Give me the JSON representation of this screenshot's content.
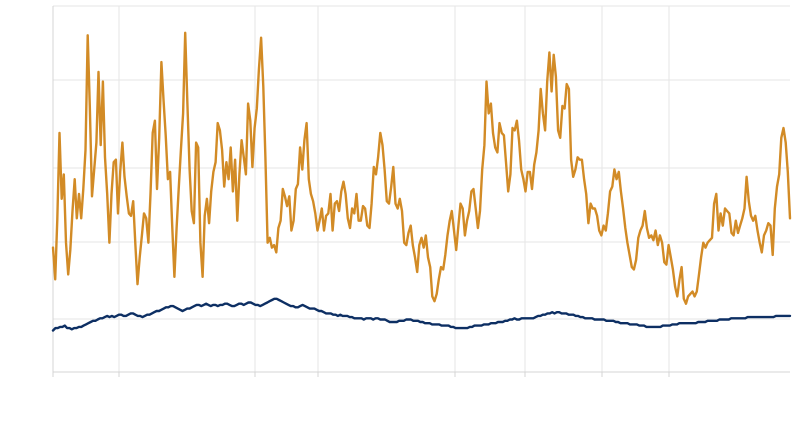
{
  "chart_data": {
    "type": "line",
    "title": "",
    "xlabel": "",
    "ylabel": "",
    "x_range": [
      0,
      313
    ],
    "y_range": [
      -2,
      28
    ],
    "grid": true,
    "legend": "none",
    "series": [
      {
        "color": "#d28b26",
        "values": [
          8.2,
          5.6,
          10.5,
          17.6,
          12.2,
          14.2,
          8.6,
          6.0,
          8.0,
          11.2,
          13.8,
          10.6,
          12.6,
          10.6,
          13.0,
          16.2,
          25.6,
          19.8,
          12.4,
          14.6,
          16.8,
          22.6,
          16.6,
          21.8,
          15.6,
          12.6,
          8.6,
          12.6,
          15.2,
          15.4,
          11.0,
          14.4,
          16.8,
          14.0,
          12.4,
          11.0,
          10.8,
          12.0,
          8.4,
          5.2,
          7.4,
          9.2,
          11.0,
          10.6,
          8.6,
          12.6,
          17.6,
          18.6,
          13.0,
          17.2,
          23.4,
          20.2,
          17.4,
          13.8,
          14.4,
          10.0,
          5.8,
          9.8,
          13.0,
          16.2,
          19.2,
          25.8,
          20.0,
          14.6,
          11.2,
          10.2,
          16.8,
          16.4,
          8.6,
          5.8,
          10.8,
          12.2,
          10.2,
          12.8,
          14.4,
          15.2,
          18.4,
          17.8,
          16.2,
          13.2,
          15.2,
          13.8,
          16.4,
          12.8,
          15.4,
          10.4,
          14.2,
          17.0,
          15.6,
          14.2,
          20.0,
          18.6,
          14.8,
          18.0,
          19.6,
          22.8,
          25.4,
          21.4,
          15.6,
          8.6,
          9.0,
          8.2,
          8.4,
          7.8,
          9.8,
          10.4,
          13.0,
          12.4,
          11.6,
          12.4,
          9.6,
          10.4,
          13.0,
          13.4,
          16.4,
          14.6,
          17.0,
          18.4,
          13.8,
          12.6,
          12.0,
          11.0,
          9.6,
          10.4,
          11.4,
          9.6,
          10.8,
          11.0,
          12.6,
          9.6,
          11.8,
          12.0,
          11.2,
          12.8,
          13.6,
          12.6,
          10.6,
          9.8,
          11.4,
          11.0,
          12.6,
          10.4,
          10.4,
          11.6,
          11.4,
          10.0,
          9.8,
          11.8,
          14.8,
          14.2,
          15.6,
          17.6,
          16.6,
          14.6,
          12.0,
          11.8,
          13.2,
          14.8,
          11.8,
          11.4,
          12.2,
          11.2,
          8.6,
          8.4,
          9.4,
          10.0,
          8.4,
          7.4,
          6.2,
          8.4,
          9.0,
          8.2,
          9.2,
          7.4,
          6.6,
          4.2,
          3.8,
          4.4,
          5.6,
          6.6,
          6.4,
          7.6,
          9.2,
          10.4,
          11.2,
          9.6,
          8.0,
          10.0,
          11.8,
          11.4,
          9.2,
          10.4,
          11.2,
          12.8,
          13.0,
          11.4,
          9.8,
          11.2,
          14.6,
          16.6,
          21.8,
          19.2,
          20.0,
          17.6,
          16.4,
          16.0,
          18.4,
          17.6,
          17.4,
          15.2,
          12.8,
          14.2,
          18.0,
          17.8,
          18.6,
          17.0,
          14.6,
          13.8,
          12.8,
          14.4,
          14.4,
          13.0,
          15.0,
          16.0,
          17.8,
          21.2,
          19.2,
          17.8,
          21.8,
          24.2,
          21.0,
          24.0,
          22.2,
          17.8,
          17.2,
          19.8,
          19.6,
          21.6,
          21.2,
          15.4,
          14.0,
          14.6,
          15.6,
          15.4,
          15.4,
          13.8,
          12.6,
          10.2,
          11.8,
          11.4,
          11.4,
          10.8,
          9.6,
          9.2,
          10.0,
          9.6,
          11.0,
          12.8,
          13.2,
          14.6,
          13.8,
          14.4,
          12.8,
          11.4,
          9.8,
          8.6,
          7.6,
          6.6,
          6.4,
          7.2,
          9.0,
          9.6,
          10.0,
          11.2,
          9.8,
          9.0,
          9.2,
          8.8,
          9.6,
          8.4,
          9.2,
          8.6,
          7.0,
          6.8,
          8.4,
          7.4,
          6.4,
          5.0,
          4.2,
          5.6,
          6.6,
          4.0,
          3.6,
          4.2,
          4.4,
          4.6,
          4.2,
          4.6,
          6.0,
          7.4,
          8.6,
          8.2,
          8.6,
          8.8,
          9.0,
          11.8,
          12.6,
          9.6,
          11.0,
          10.0,
          11.4,
          11.2,
          11.0,
          9.4,
          9.2,
          10.4,
          9.4,
          10.0,
          10.6,
          11.4,
          14.0,
          12.0,
          10.8,
          10.4,
          10.8,
          9.6,
          8.6,
          7.8,
          9.2,
          9.6,
          10.2,
          10.0,
          7.6,
          11.4,
          13.2,
          14.2,
          17.2,
          18.0,
          16.8,
          14.4,
          10.6
        ]
      },
      {
        "color": "#0d2f63",
        "values": [
          1.4,
          1.6,
          1.6,
          1.7,
          1.7,
          1.8,
          1.6,
          1.6,
          1.5,
          1.6,
          1.6,
          1.7,
          1.7,
          1.8,
          1.9,
          2.0,
          2.1,
          2.2,
          2.2,
          2.3,
          2.4,
          2.4,
          2.5,
          2.6,
          2.5,
          2.6,
          2.5,
          2.6,
          2.7,
          2.7,
          2.6,
          2.6,
          2.7,
          2.8,
          2.8,
          2.7,
          2.6,
          2.6,
          2.5,
          2.6,
          2.7,
          2.7,
          2.8,
          2.9,
          3.0,
          3.0,
          3.1,
          3.2,
          3.3,
          3.3,
          3.4,
          3.4,
          3.3,
          3.2,
          3.1,
          3.0,
          3.1,
          3.2,
          3.2,
          3.3,
          3.4,
          3.5,
          3.5,
          3.4,
          3.5,
          3.6,
          3.5,
          3.4,
          3.5,
          3.5,
          3.4,
          3.5,
          3.5,
          3.6,
          3.6,
          3.5,
          3.4,
          3.4,
          3.5,
          3.6,
          3.6,
          3.5,
          3.6,
          3.7,
          3.7,
          3.6,
          3.5,
          3.5,
          3.4,
          3.5,
          3.6,
          3.7,
          3.8,
          3.9,
          4.0,
          4.0,
          3.9,
          3.8,
          3.7,
          3.6,
          3.5,
          3.4,
          3.4,
          3.3,
          3.3,
          3.4,
          3.5,
          3.4,
          3.3,
          3.2,
          3.2,
          3.2,
          3.1,
          3.0,
          3.0,
          2.9,
          2.8,
          2.8,
          2.8,
          2.7,
          2.7,
          2.6,
          2.7,
          2.6,
          2.6,
          2.6,
          2.5,
          2.5,
          2.4,
          2.4,
          2.4,
          2.4,
          2.3,
          2.4,
          2.4,
          2.4,
          2.3,
          2.4,
          2.4,
          2.3,
          2.3,
          2.3,
          2.2,
          2.1,
          2.1,
          2.1,
          2.1,
          2.2,
          2.2,
          2.2,
          2.3,
          2.3,
          2.3,
          2.2,
          2.2,
          2.2,
          2.1,
          2.1,
          2.0,
          2.0,
          2.0,
          1.9,
          1.9,
          1.9,
          1.9,
          1.8,
          1.8,
          1.8,
          1.8,
          1.7,
          1.7,
          1.6,
          1.6,
          1.6,
          1.6,
          1.6,
          1.6,
          1.7,
          1.7,
          1.8,
          1.8,
          1.8,
          1.8,
          1.9,
          1.9,
          1.9,
          2.0,
          2.0,
          2.0,
          2.1,
          2.1,
          2.1,
          2.2,
          2.2,
          2.3,
          2.3,
          2.4,
          2.3,
          2.3,
          2.4,
          2.4,
          2.4,
          2.4,
          2.4,
          2.4,
          2.5,
          2.6,
          2.6,
          2.7,
          2.7,
          2.8,
          2.8,
          2.9,
          2.8,
          2.9,
          2.9,
          2.8,
          2.8,
          2.8,
          2.7,
          2.7,
          2.7,
          2.6,
          2.6,
          2.5,
          2.5,
          2.4,
          2.4,
          2.4,
          2.4,
          2.3,
          2.3,
          2.3,
          2.3,
          2.3,
          2.2,
          2.2,
          2.2,
          2.2,
          2.1,
          2.1,
          2.0,
          2.0,
          2.0,
          2.0,
          1.9,
          1.9,
          1.9,
          1.9,
          1.8,
          1.8,
          1.8,
          1.7,
          1.7,
          1.7,
          1.7,
          1.7,
          1.7,
          1.7,
          1.8,
          1.8,
          1.8,
          1.8,
          1.9,
          1.9,
          1.9,
          2.0,
          2.0,
          2.0,
          2.0,
          2.0,
          2.0,
          2.0,
          2.0,
          2.1,
          2.1,
          2.1,
          2.1,
          2.2,
          2.2,
          2.2,
          2.2,
          2.2,
          2.3,
          2.3,
          2.3,
          2.3,
          2.3,
          2.4,
          2.4,
          2.4,
          2.4,
          2.4,
          2.4,
          2.4,
          2.5,
          2.5,
          2.5,
          2.5,
          2.5,
          2.5,
          2.5,
          2.5,
          2.5,
          2.5,
          2.5,
          2.5,
          2.6,
          2.6,
          2.6,
          2.6,
          2.6,
          2.6,
          2.6
        ]
      }
    ]
  }
}
